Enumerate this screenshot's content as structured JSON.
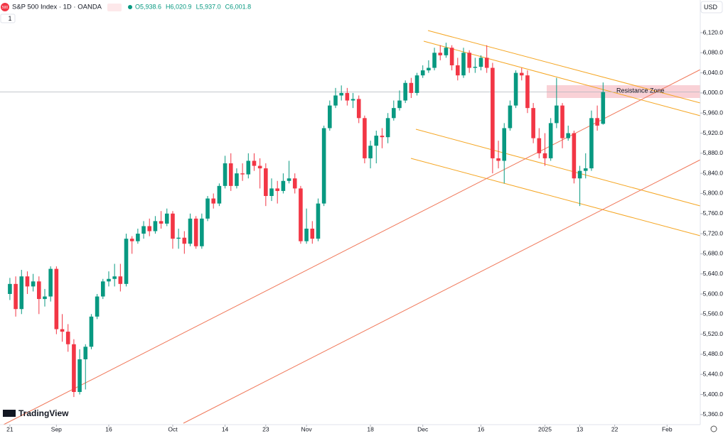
{
  "header": {
    "symbol_icon": "500",
    "title": "S&P 500 Index · 1D · OANDA",
    "ohlc": [
      "O5,938.6",
      "H6,020.9",
      "L5,937.0",
      "C6,001.8"
    ],
    "indicators": "1",
    "currency": "USD",
    "logo": "TradingView"
  },
  "chart_data": {
    "type": "candlestick",
    "open": [
      5600,
      5620,
      5570,
      5635,
      5615,
      5625,
      5590,
      5595,
      5650,
      5530,
      5525,
      5500,
      5405,
      5470,
      5495,
      5555,
      5595,
      5625,
      5630,
      5635,
      5620,
      5710,
      5705,
      5720,
      5735,
      5725,
      5745,
      5740,
      5760,
      5710,
      5712,
      5700,
      5750,
      5695,
      5750,
      5790,
      5780,
      5815,
      5860,
      5815,
      5840,
      5838,
      5865,
      5855,
      5850,
      5795,
      5810,
      5805,
      5825,
      5830,
      5810,
      5705,
      5730,
      5710,
      5780,
      5930,
      5975,
      5995,
      6000,
      5985,
      5988,
      5950,
      5870,
      5895,
      5915,
      5912,
      5950,
      5970,
      5985,
      6020,
      6000,
      6035,
      6045,
      6050,
      6080,
      6075,
      6090,
      6055,
      6035,
      6080,
      6050,
      6052,
      6070,
      6050,
      5870,
      5865,
      5930,
      5975,
      6040,
      6035,
      5970,
      5910,
      5880,
      5870,
      5940,
      5975,
      5910,
      5920,
      5830,
      5845,
      5850,
      5950,
      5938.6
    ],
    "high": [
      5632,
      5635,
      5648,
      5645,
      5640,
      5635,
      5610,
      5655,
      5655,
      5560,
      5540,
      5510,
      5490,
      5500,
      5560,
      5600,
      5630,
      5645,
      5660,
      5660,
      5720,
      5715,
      5730,
      5745,
      5750,
      5755,
      5765,
      5770,
      5765,
      5730,
      5725,
      5760,
      5755,
      5760,
      5795,
      5800,
      5820,
      5875,
      5880,
      5850,
      5860,
      5880,
      5880,
      5870,
      5860,
      5830,
      5825,
      5840,
      5865,
      5840,
      5815,
      5770,
      5745,
      5790,
      5935,
      5985,
      6010,
      6015,
      6010,
      6000,
      5995,
      5955,
      5905,
      5925,
      5930,
      5960,
      5985,
      6005,
      6025,
      6030,
      6040,
      6055,
      6065,
      6090,
      6095,
      6100,
      6095,
      6070,
      6090,
      6085,
      6070,
      6075,
      6095,
      6060,
      5905,
      5940,
      5985,
      6045,
      6050,
      6045,
      5980,
      5930,
      5920,
      5950,
      6030,
      5980,
      5935,
      5925,
      5855,
      5880,
      5965,
      5975,
      6020.9
    ],
    "low": [
      5588,
      5555,
      5560,
      5600,
      5605,
      5560,
      5575,
      5585,
      5520,
      5505,
      5485,
      5395,
      5400,
      5410,
      5490,
      5550,
      5590,
      5615,
      5615,
      5605,
      5615,
      5680,
      5700,
      5710,
      5715,
      5720,
      5730,
      5735,
      5690,
      5690,
      5680,
      5695,
      5690,
      5690,
      5745,
      5770,
      5775,
      5810,
      5805,
      5810,
      5825,
      5830,
      5845,
      5810,
      5775,
      5785,
      5780,
      5800,
      5820,
      5800,
      5700,
      5700,
      5700,
      5705,
      5775,
      5925,
      5970,
      5985,
      5975,
      5970,
      5940,
      5860,
      5850,
      5860,
      5890,
      5900,
      5945,
      5965,
      5980,
      5990,
      5995,
      6030,
      6040,
      6045,
      6065,
      6070,
      6045,
      6025,
      6030,
      6040,
      6040,
      6045,
      6040,
      5840,
      5850,
      5820,
      5925,
      5970,
      6025,
      5960,
      5900,
      5870,
      5855,
      5865,
      5930,
      5890,
      5905,
      5820,
      5775,
      5830,
      5845,
      5925,
      5937
    ],
    "close": [
      5620,
      5570,
      5635,
      5615,
      5625,
      5590,
      5595,
      5650,
      5530,
      5525,
      5500,
      5405,
      5470,
      5495,
      5555,
      5595,
      5625,
      5630,
      5635,
      5620,
      5710,
      5705,
      5720,
      5735,
      5725,
      5745,
      5740,
      5760,
      5710,
      5712,
      5700,
      5750,
      5695,
      5750,
      5790,
      5780,
      5815,
      5860,
      5815,
      5840,
      5838,
      5865,
      5855,
      5850,
      5795,
      5810,
      5805,
      5825,
      5830,
      5810,
      5705,
      5730,
      5710,
      5780,
      5930,
      5975,
      5995,
      6000,
      5985,
      5988,
      5950,
      5870,
      5895,
      5915,
      5912,
      5950,
      5970,
      5985,
      6020,
      6000,
      6035,
      6045,
      6050,
      6080,
      6075,
      6090,
      6055,
      6035,
      6080,
      6050,
      6052,
      6070,
      6050,
      5870,
      5865,
      5930,
      5975,
      6040,
      6035,
      5970,
      5910,
      5880,
      5870,
      5940,
      5975,
      5910,
      5920,
      5830,
      5845,
      5850,
      5950,
      5935,
      6001.8
    ],
    "up_color": "#089981",
    "down_color": "#f23645",
    "xlim": [
      -1.7,
      118.1
    ],
    "xticks": [
      {
        "value": 0,
        "label": "21"
      },
      {
        "value": 8,
        "label": "Sep"
      },
      {
        "value": 17,
        "label": "16"
      },
      {
        "value": 28,
        "label": "Oct"
      },
      {
        "value": 37,
        "label": "14"
      },
      {
        "value": 44,
        "label": "23"
      },
      {
        "value": 51,
        "label": "Nov"
      },
      {
        "value": 62,
        "label": "18"
      },
      {
        "value": 71,
        "label": "Dec"
      },
      {
        "value": 81,
        "label": "16"
      },
      {
        "value": 92,
        "label": "2025"
      },
      {
        "value": 98,
        "label": "13"
      },
      {
        "value": 104,
        "label": "22"
      },
      {
        "value": 113,
        "label": "Feb"
      }
    ],
    "ylim": [
      5340,
      6185
    ],
    "yticks": [
      {
        "value": 5360,
        "label": "5,360.0"
      },
      {
        "value": 5400,
        "label": "5,400.0"
      },
      {
        "value": 5440,
        "label": "5,440.0"
      },
      {
        "value": 5480,
        "label": "5,480.0"
      },
      {
        "value": 5520,
        "label": "5,520.0"
      },
      {
        "value": 5560,
        "label": "5,560.0"
      },
      {
        "value": 5600,
        "label": "5,600.0"
      },
      {
        "value": 5640,
        "label": "5,640.0"
      },
      {
        "value": 5680,
        "label": "5,680.0"
      },
      {
        "value": 5720,
        "label": "5,720.0"
      },
      {
        "value": 5760,
        "label": "5,760.0"
      },
      {
        "value": 5800,
        "label": "5,800.0"
      },
      {
        "value": 5840,
        "label": "5,840.0"
      },
      {
        "value": 5880,
        "label": "5,880.0"
      },
      {
        "value": 5920,
        "label": "5,920.0"
      },
      {
        "value": 5960,
        "label": "5,960.0"
      },
      {
        "value": 6000,
        "label": "6,000.0"
      },
      {
        "value": 6040,
        "label": "6,040.0"
      },
      {
        "value": 6080,
        "label": "6,080.0"
      },
      {
        "value": 6120,
        "label": "6,120.0"
      }
    ],
    "grid": false,
    "annotations": [
      "Resistance Zone"
    ]
  }
}
